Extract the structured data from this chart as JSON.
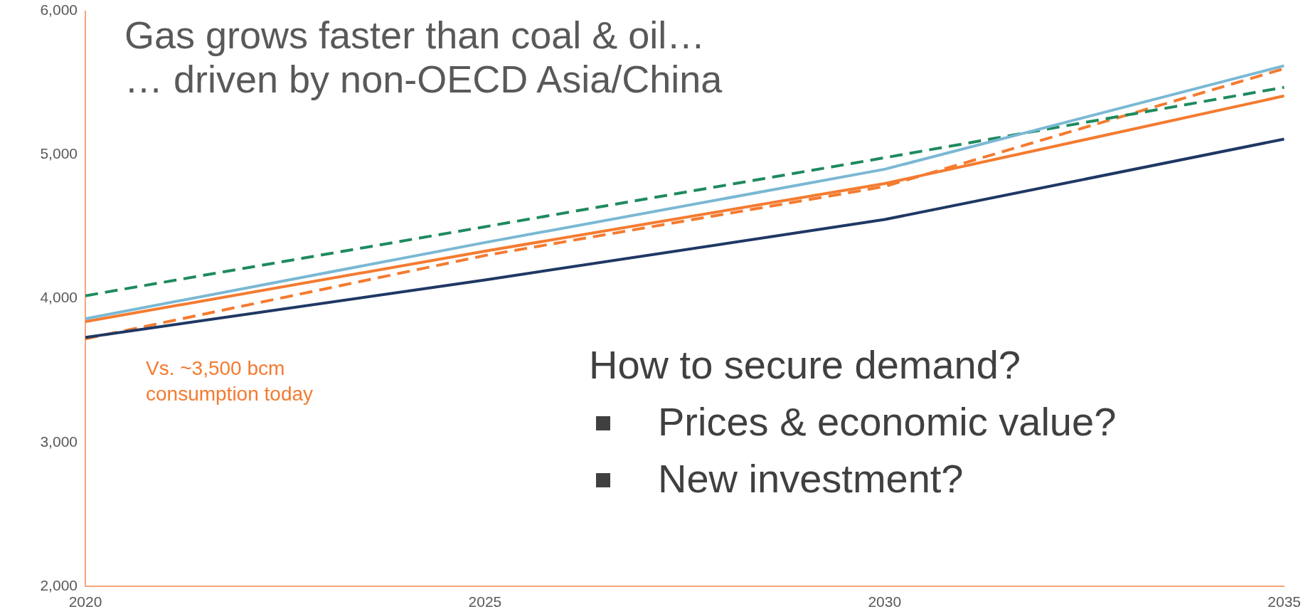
{
  "chart_data": {
    "type": "line",
    "title": "Gas grows faster than coal & oil…",
    "subtitle": "… driven by non-OECD Asia/China",
    "x": [
      2020,
      2025,
      2030,
      2035
    ],
    "xlim": [
      2020,
      2035
    ],
    "xticks": [
      2020,
      2025,
      2030,
      2035
    ],
    "ylim": [
      2000,
      6000
    ],
    "yticks": [
      {
        "value": 2000,
        "label": "2,000"
      },
      {
        "value": 3000,
        "label": "3,000"
      },
      {
        "value": 4000,
        "label": "4,000"
      },
      {
        "value": 5000,
        "label": "5,000"
      },
      {
        "value": 6000,
        "label": "6,000"
      }
    ],
    "grid": false,
    "legend": false,
    "marker": "none",
    "series": [
      {
        "color": "#1f3864",
        "values": [
          3730,
          4130,
          4550,
          5110
        ]
      },
      {
        "color": "#7ab8d4",
        "values": [
          3860,
          4390,
          4900,
          5620
        ]
      },
      {
        "color": "#f47b30",
        "values": [
          3840,
          4330,
          4800,
          5410
        ]
      },
      {
        "color": "#1e8a5e",
        "values": [
          4020,
          4500,
          4980,
          5470
        ],
        "line_style": "dashed"
      },
      {
        "color": "#f47b30",
        "values": [
          3720,
          4300,
          4780,
          5600
        ],
        "line_style": "dashed"
      }
    ],
    "annotations": [
      "Vs. ~3,500 bcm consumption today",
      "How to secure demand?",
      "Prices & economic value?",
      "New investment?"
    ]
  }
}
